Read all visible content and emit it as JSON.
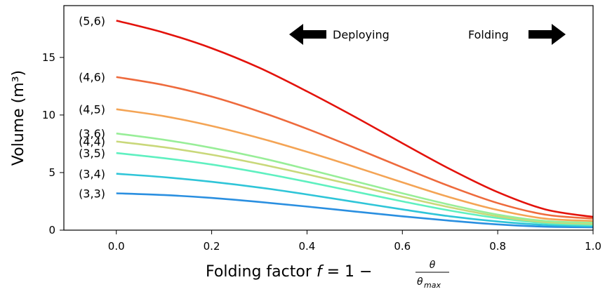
{
  "chart_data": {
    "type": "line",
    "xlabel_prefix": "Folding factor ",
    "xlabel_var": "f",
    "xlabel_eq": " = 1 − ",
    "xlabel_num": "θ",
    "xlabel_den": "θ",
    "xlabel_den_sub": "max",
    "ylabel": "Volume (m³)",
    "xlim": [
      -0.11,
      1.0
    ],
    "ylim": [
      0,
      19.5
    ],
    "xticks": [
      0.0,
      0.2,
      0.4,
      0.6,
      0.8,
      1.0
    ],
    "xtick_labels": [
      "0.0",
      "0.2",
      "0.4",
      "0.6",
      "0.8",
      "1.0"
    ],
    "yticks": [
      0,
      5,
      10,
      15
    ],
    "ytick_labels": [
      "0",
      "5",
      "10",
      "15"
    ],
    "grid": false,
    "annotations": {
      "deploying": "Deploying",
      "folding": "Folding"
    },
    "series": [
      {
        "name": "(3,3)",
        "color": "#2a8fe0",
        "values": [
          3.2,
          3.05,
          2.8,
          2.45,
          2.05,
          1.62,
          1.2,
          0.82,
          0.5,
          0.3,
          0.25
        ]
      },
      {
        "name": "(3,4)",
        "color": "#2fc5d8",
        "values": [
          4.9,
          4.6,
          4.2,
          3.7,
          3.1,
          2.45,
          1.8,
          1.2,
          0.75,
          0.45,
          0.35
        ]
      },
      {
        "name": "(3,5)",
        "color": "#5ff0c0",
        "values": [
          6.7,
          6.25,
          5.7,
          5.0,
          4.2,
          3.35,
          2.5,
          1.7,
          1.05,
          0.6,
          0.45
        ]
      },
      {
        "name": "(4,4)",
        "color": "#c9d87a",
        "values": [
          7.7,
          7.2,
          6.55,
          5.75,
          4.85,
          3.9,
          2.9,
          1.98,
          1.2,
          0.7,
          0.55
        ]
      },
      {
        "name": "(3,6)",
        "color": "#98ee98",
        "values": [
          8.4,
          7.85,
          7.15,
          6.3,
          5.3,
          4.25,
          3.2,
          2.2,
          1.35,
          0.8,
          0.65
        ]
      },
      {
        "name": "(4,5)",
        "color": "#f4a455",
        "values": [
          10.5,
          9.9,
          9.05,
          8.0,
          6.8,
          5.5,
          4.15,
          2.85,
          1.75,
          1.0,
          0.8
        ]
      },
      {
        "name": "(4,6)",
        "color": "#ee6a3c",
        "values": [
          13.3,
          12.6,
          11.6,
          10.3,
          8.8,
          7.15,
          5.45,
          3.8,
          2.35,
          1.35,
          1.0
        ]
      },
      {
        "name": "(5,6)",
        "color": "#e3120b",
        "values": [
          18.2,
          17.15,
          15.8,
          14.1,
          12.05,
          9.85,
          7.55,
          5.3,
          3.3,
          1.8,
          1.15
        ]
      }
    ]
  }
}
